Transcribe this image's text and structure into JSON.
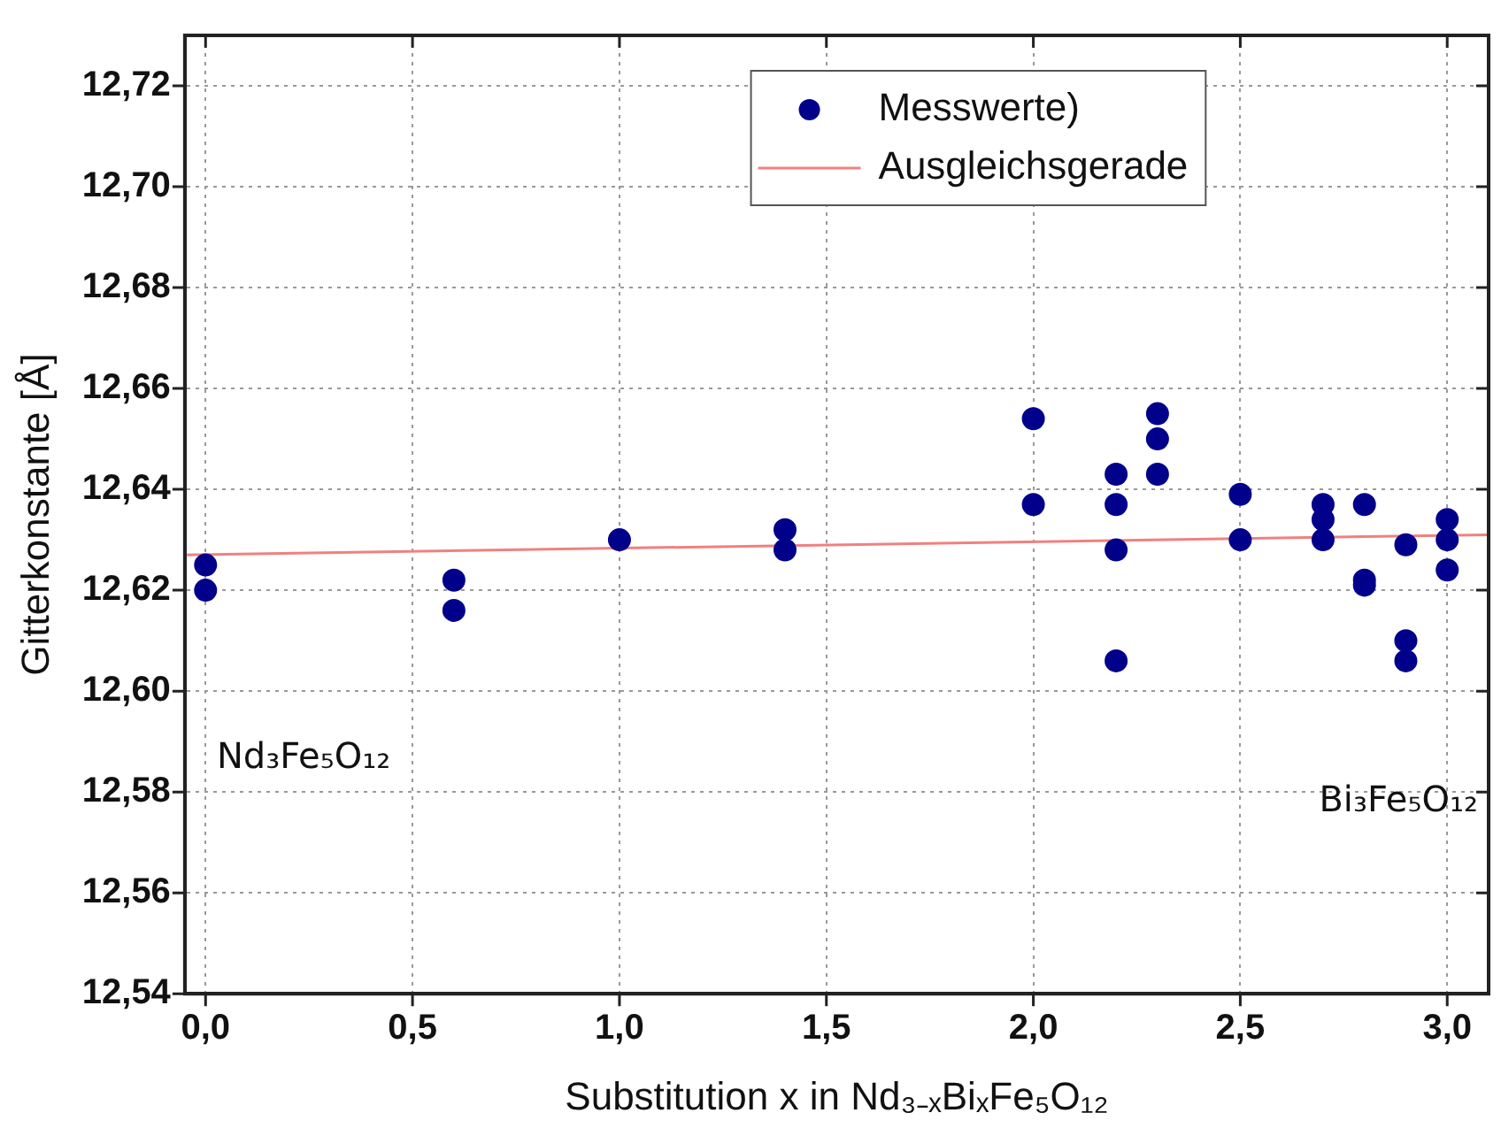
{
  "chart_data": {
    "type": "scatter",
    "xlabel": "Substitution x in Nd₃₋ₓBiₓFe₅O₁₂",
    "ylabel": "Gitterkonstante [Å]",
    "xlim": [
      -0.05,
      3.1
    ],
    "xticks": [
      {
        "value": 0,
        "label": "0,0"
      },
      {
        "value": 0.5,
        "label": "0,5"
      },
      {
        "value": 1,
        "label": "1,0"
      },
      {
        "value": 1.5,
        "label": "1,5"
      },
      {
        "value": 2,
        "label": "2,0"
      },
      {
        "value": 2.5,
        "label": "2,5"
      },
      {
        "value": 3,
        "label": "3,0"
      }
    ],
    "ylim": [
      12.54,
      12.73
    ],
    "yticks": [
      {
        "value": 12.54,
        "label": "12,54"
      },
      {
        "value": 12.56,
        "label": "12,56"
      },
      {
        "value": 12.58,
        "label": "12,58"
      },
      {
        "value": 12.6,
        "label": "12,60"
      },
      {
        "value": 12.62,
        "label": "12,62"
      },
      {
        "value": 12.64,
        "label": "12,64"
      },
      {
        "value": 12.66,
        "label": "12,66"
      },
      {
        "value": 12.68,
        "label": "12,68"
      },
      {
        "value": 12.7,
        "label": "12,70"
      },
      {
        "value": 12.72,
        "label": "12,72"
      }
    ],
    "grid": true,
    "legend": "top",
    "marker": "circle",
    "series": [
      {
        "name": "Messwerte)",
        "color": "#00008b",
        "x": [
          0,
          0,
          0.6,
          0.6,
          1,
          1.4,
          1.4,
          2,
          2,
          2.2,
          2.2,
          2.2,
          2.2,
          2.3,
          2.3,
          2.3,
          2.5,
          2.5,
          2.7,
          2.7,
          2.7,
          2.8,
          2.8,
          2.8,
          2.9,
          2.9,
          2.9,
          3,
          3,
          3
        ],
        "values": [
          12.625,
          12.62,
          12.622,
          12.616,
          12.63,
          12.632,
          12.628,
          12.654,
          12.637,
          12.643,
          12.637,
          12.628,
          12.606,
          12.655,
          12.65,
          12.643,
          12.639,
          12.63,
          12.637,
          12.634,
          12.63,
          12.637,
          12.622,
          12.621,
          12.629,
          12.61,
          12.606,
          12.634,
          12.63,
          12.624
        ]
      },
      {
        "name": "Ausgleichsgerade",
        "color": "#f08080",
        "type": "line",
        "marker": "none",
        "x": [
          -0.05,
          3.1
        ],
        "values": [
          12.627,
          12.631
        ]
      }
    ],
    "annotations": [
      "Nd₃Fe₅O₁₂",
      "Bi₃Fe₅O₁₂"
    ]
  }
}
